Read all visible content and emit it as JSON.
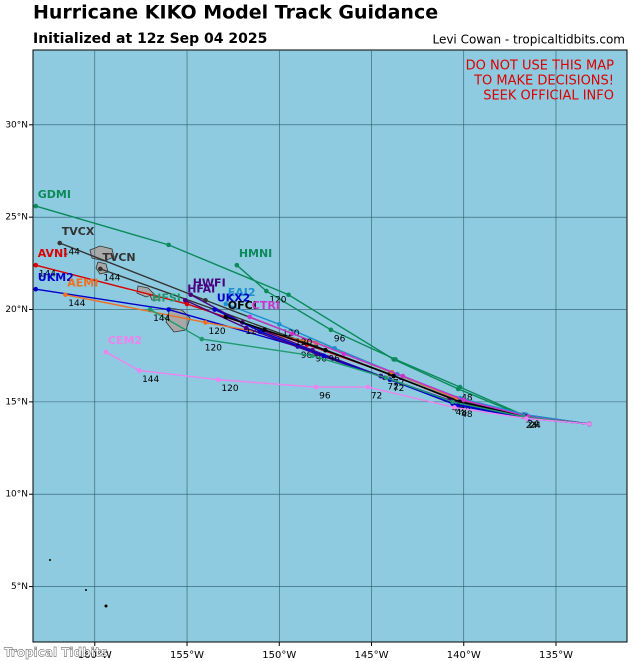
{
  "chart_data": {
    "type": "track",
    "title": "Hurricane KIKO Model Track Guidance",
    "subtitle": "Initialized at 12z Sep 04 2025",
    "credit": "Levi Cowan - tropicaltidbits.com",
    "warning": [
      "DO NOT USE THIS MAP",
      "TO MAKE DECISIONS!",
      "SEEK OFFICIAL INFO"
    ],
    "watermark": "Tropical Tidbits",
    "xlim": [
      -163.35,
      -131.15
    ],
    "ylim": [
      2.0,
      34.05
    ],
    "xticks": [
      {
        "value": -160,
        "label": "160°W"
      },
      {
        "value": -155,
        "label": "155°W"
      },
      {
        "value": -150,
        "label": "150°W"
      },
      {
        "value": -145,
        "label": "145°W"
      },
      {
        "value": -140,
        "label": "140°W"
      },
      {
        "value": -135,
        "label": "135°W"
      }
    ],
    "yticks": [
      {
        "value": 5,
        "label": "5°N"
      },
      {
        "value": 10,
        "label": "10°N"
      },
      {
        "value": 15,
        "label": "15°N"
      },
      {
        "value": 20,
        "label": "20°N"
      },
      {
        "value": 25,
        "label": "25°N"
      },
      {
        "value": 30,
        "label": "30°N"
      }
    ],
    "grid": true,
    "series": [
      {
        "name": "GDMI",
        "color": "#0b8a5c",
        "x": [
          -133.2,
          -136.9,
          -140.3,
          -143.8,
          -149.5,
          -156,
          -163.2
        ],
        "y": [
          13.8,
          14.3,
          15.7,
          17.3,
          20.8,
          23.5,
          25.6
        ],
        "hours": [
          null,
          null,
          48,
          null,
          null,
          null,
          null
        ]
      },
      {
        "name": "HMNI",
        "color": "#0b8a5c",
        "x": [
          -133.2,
          -136.8,
          -140.2,
          -143.7,
          -147.2,
          -150.7,
          -152.3
        ],
        "y": [
          13.8,
          14.3,
          15.8,
          17.3,
          18.9,
          21.0,
          22.4
        ],
        "hours": [
          null,
          null,
          null,
          null,
          96,
          120,
          null
        ]
      },
      {
        "name": "TVCX",
        "color": "#333333",
        "x": [
          -133.2,
          -136.8,
          -140.4,
          -143.9,
          -148,
          -154,
          -161.9
        ],
        "y": [
          13.8,
          14.2,
          15.2,
          16.6,
          18.2,
          20.5,
          23.6
        ],
        "hours": [
          null,
          24,
          48,
          null,
          null,
          null,
          144
        ]
      },
      {
        "name": "AVNI",
        "color": "#dd0000",
        "x": [
          -133.2,
          -136.8,
          -140.5,
          -144,
          -148.5,
          -155,
          -163.2
        ],
        "y": [
          13.8,
          14.2,
          15.1,
          16.5,
          18.1,
          20.3,
          22.4
        ],
        "hours": [
          null,
          null,
          null,
          72,
          null,
          null,
          144
        ]
      },
      {
        "name": "TVCN",
        "color": "#333333",
        "x": [
          -133.2,
          -136.8,
          -140.4,
          -144,
          -148,
          -153.5,
          -159.7
        ],
        "y": [
          13.8,
          14.2,
          15.1,
          16.5,
          18.0,
          20.0,
          22.2
        ],
        "hours": [
          null,
          null,
          null,
          null,
          null,
          null,
          144
        ]
      },
      {
        "name": "UKM2",
        "color": "#0000cc",
        "x": [
          -133.2,
          -136.8,
          -140.6,
          -144.5,
          -149,
          -156,
          -163.2
        ],
        "y": [
          13.8,
          14.2,
          14.9,
          16.4,
          18.0,
          20.0,
          21.1
        ],
        "hours": [
          null,
          null,
          48,
          null,
          96,
          null,
          null
        ]
      },
      {
        "name": "AEMI",
        "color": "#f07020",
        "x": [
          -133.2,
          -136.9,
          -140.4,
          -143.9,
          -148,
          -154,
          -161.6
        ],
        "y": [
          13.8,
          14.3,
          15.2,
          16.6,
          18.2,
          19.3,
          20.8
        ],
        "hours": [
          null,
          null,
          null,
          null,
          null,
          120,
          144
        ]
      },
      {
        "name": "HWFI",
        "color": "#4b0082",
        "x": [
          -133.2,
          -136.7,
          -140.8,
          -144.5,
          -148.2,
          -152,
          -154.8
        ],
        "y": [
          13.8,
          14.3,
          15.1,
          16.4,
          17.8,
          19.3,
          20.8
        ],
        "hours": [
          null,
          null,
          48,
          null,
          96,
          120,
          null
        ]
      },
      {
        "name": "HFAI",
        "color": "#4b0082",
        "x": [
          -133.2,
          -136.7,
          -140.6,
          -144.3,
          -148,
          -151.8,
          -155.1
        ],
        "y": [
          13.8,
          14.3,
          15.0,
          16.3,
          17.6,
          19.0,
          20.5
        ],
        "hours": [
          null,
          24,
          null,
          72,
          null,
          null,
          null
        ]
      },
      {
        "name": "EAI2",
        "color": "#1e90d0",
        "x": [
          -133.2,
          -136.6,
          -140.2,
          -143.6,
          -147,
          -150,
          -152.9
        ],
        "y": [
          13.8,
          14.3,
          15.2,
          16.5,
          17.9,
          19.2,
          20.3
        ],
        "hours": [
          null,
          null,
          null,
          null,
          null,
          120,
          null
        ]
      },
      {
        "name": "UKX2",
        "color": "#0000cc",
        "x": [
          -133.2,
          -136.5,
          -140.3,
          -144,
          -147.6,
          -151,
          -153.5
        ],
        "y": [
          13.8,
          14.1,
          14.8,
          16.2,
          17.5,
          18.8,
          20.0
        ],
        "hours": [
          null,
          null,
          48,
          72,
          null,
          null,
          null
        ]
      },
      {
        "name": "OFCI",
        "color": "#000000",
        "x": [
          -133.2,
          -136.6,
          -140.2,
          -143.8,
          -147.5,
          -150.8,
          -152.9
        ],
        "y": [
          13.8,
          14.2,
          15.0,
          16.4,
          17.8,
          18.9,
          19.6
        ],
        "hours": [
          null,
          24,
          null,
          null,
          96,
          null,
          null
        ]
      },
      {
        "name": "CTRI",
        "color": "#cc33cc",
        "x": [
          -133.2,
          -136.5,
          -140,
          -143.3,
          -146.5,
          -149.3,
          -151.6
        ],
        "y": [
          13.8,
          14.2,
          15.1,
          16.4,
          17.6,
          18.7,
          19.6
        ],
        "hours": [
          null,
          null,
          null,
          null,
          null,
          120,
          null
        ]
      },
      {
        "name": "HFSI",
        "color": "#1f9a70",
        "x": [
          -133.2,
          -136.8,
          -140.6,
          -144.2,
          -148.2,
          -154.2,
          -157
        ],
        "y": [
          13.8,
          14.2,
          15.0,
          16.3,
          17.5,
          18.4,
          20.0
        ],
        "hours": [
          null,
          null,
          null,
          null,
          null,
          120,
          144
        ]
      },
      {
        "name": "CEM2",
        "color": "#ee82ee",
        "x": [
          -133.2,
          -136.6,
          -140.5,
          -145.2,
          -148,
          -153.3,
          -157.6,
          -159.4
        ],
        "y": [
          13.8,
          14.1,
          14.7,
          15.8,
          15.8,
          16.2,
          16.7,
          17.7
        ],
        "hours": [
          null,
          null,
          null,
          72,
          96,
          120,
          144,
          null
        ]
      }
    ]
  }
}
